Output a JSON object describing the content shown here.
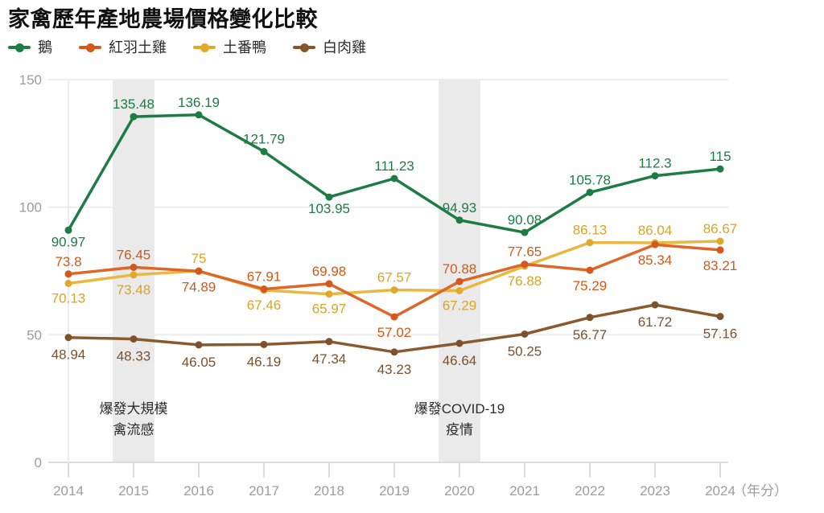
{
  "title": "家禽歷年產地農場價格變化比較",
  "legend": [
    {
      "label": "鵝",
      "color": "#1d7c44"
    },
    {
      "label": "紅羽土雞",
      "color": "#d4581d"
    },
    {
      "label": "土番鴨",
      "color": "#e0a92c"
    },
    {
      "label": "白肉雞",
      "color": "#85552c"
    }
  ],
  "chart_data": {
    "type": "line",
    "title": "家禽歷年產地農場價格變化比較",
    "x": [
      2014,
      2015,
      2016,
      2017,
      2018,
      2019,
      2020,
      2021,
      2022,
      2023,
      2024
    ],
    "x_axis_suffix": "（年分）",
    "y_ticks": [
      0,
      50,
      100,
      150
    ],
    "ylim": [
      0,
      150
    ],
    "grid": true,
    "legend_position": "top",
    "colors": {
      "band": "#eaeaea",
      "grid": "#ececec",
      "baseline": "#dcdcdc",
      "tick": "#dcdcdc",
      "axis_text": "#9c9c9c"
    },
    "series": [
      {
        "name": "鵝",
        "line_color": "#1d7c44",
        "dot_color": "#1d7c44",
        "label_color": "#1d7c44",
        "values": [
          90.97,
          135.48,
          136.19,
          121.79,
          103.95,
          111.23,
          94.93,
          90.08,
          105.78,
          112.3,
          115
        ],
        "labels": [
          "90.97",
          "135.48",
          "136.19",
          "121.79",
          "103.95",
          "111.23",
          "94.93",
          "90.08",
          "105.78",
          "112.3",
          "115"
        ],
        "label_pos": [
          "below",
          "above",
          "above",
          "above",
          "below",
          "above",
          "above",
          "above",
          "above",
          "above",
          "above"
        ],
        "below_dy": 20
      },
      {
        "name": "紅羽土雞",
        "line_color": "#dd6727",
        "dot_color": "#d4581d",
        "label_color": "#cf5a1c",
        "values": [
          73.8,
          76.45,
          74.89,
          67.91,
          69.98,
          57.02,
          70.88,
          77.65,
          75.29,
          85.34,
          83.21
        ],
        "labels": [
          "73.8",
          "76.45",
          "74.89",
          "67.91",
          "69.98",
          "57.02",
          "70.88",
          "77.65",
          "75.29",
          "85.34",
          "83.21"
        ],
        "label_pos": [
          "above",
          "above",
          "below",
          "above",
          "above",
          "below",
          "above",
          "above",
          "below",
          "below",
          "below"
        ],
        "below_dy": 25
      },
      {
        "name": "土番鴨",
        "line_color": "#e8b842",
        "dot_color": "#e0a92c",
        "label_color": "#d9a326",
        "values": [
          70.13,
          73.48,
          75,
          67.46,
          65.97,
          67.57,
          67.29,
          76.88,
          86.13,
          86.04,
          86.67
        ],
        "labels": [
          "70.13",
          "73.48",
          "75",
          "67.46",
          "65.97",
          "67.57",
          "67.29",
          "76.88",
          "86.13",
          "86.04",
          "86.67"
        ],
        "label_pos": [
          "below",
          "below",
          "above",
          "below",
          "below",
          "above",
          "below",
          "below",
          "above",
          "above",
          "above"
        ],
        "below_dy": 24
      },
      {
        "name": "白肉雞",
        "line_color": "#8a5a2e",
        "dot_color": "#7d5129",
        "label_color": "#7d5129",
        "values": [
          48.94,
          48.33,
          46.05,
          46.19,
          47.34,
          43.23,
          46.64,
          50.25,
          56.77,
          61.72,
          57.16
        ],
        "labels": [
          "48.94",
          "48.33",
          "46.05",
          "46.19",
          "47.34",
          "43.23",
          "46.64",
          "50.25",
          "56.77",
          "61.72",
          "57.16"
        ],
        "label_pos": [
          "below",
          "below",
          "below",
          "below",
          "below",
          "below",
          "below",
          "below",
          "below",
          "below",
          "below"
        ],
        "below_dy": 27
      }
    ],
    "draw_order": [
      0,
      2,
      1,
      3
    ],
    "bands": [
      {
        "year": 2015
      },
      {
        "year": 2020
      }
    ],
    "annotations": [
      {
        "year": 2015,
        "lines": [
          "爆發大規模",
          "禽流感"
        ]
      },
      {
        "year": 2020,
        "lines": [
          "爆發COVID-19",
          "疫情"
        ]
      }
    ]
  }
}
